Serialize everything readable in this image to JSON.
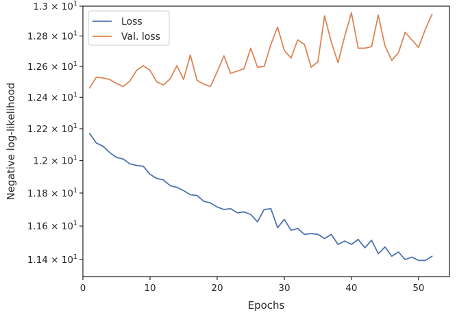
{
  "chart_data": {
    "type": "line",
    "xlabel": "Epochs",
    "ylabel": "Negative log-likelihood",
    "xlim": [
      0,
      54.6
    ],
    "ylim": [
      11.3,
      13.0
    ],
    "y_scale": "log",
    "grid": false,
    "legend_position": "top-left",
    "x_ticks": [
      0,
      10,
      20,
      30,
      40,
      50
    ],
    "x_tick_labels": [
      "0",
      "10",
      "20",
      "30",
      "40",
      "50"
    ],
    "y_ticks": [
      11.4,
      11.6,
      11.8,
      12.0,
      12.2,
      12.4,
      12.6,
      12.8,
      13.0
    ],
    "y_tick_labels": [
      {
        "mantissa": "1.14",
        "exp": "1"
      },
      {
        "mantissa": "1.16",
        "exp": "1"
      },
      {
        "mantissa": "1.18",
        "exp": "1"
      },
      {
        "mantissa": "1.2",
        "exp": "1"
      },
      {
        "mantissa": "1.22",
        "exp": "1"
      },
      {
        "mantissa": "1.24",
        "exp": "1"
      },
      {
        "mantissa": "1.26",
        "exp": "1"
      },
      {
        "mantissa": "1.28",
        "exp": "1"
      },
      {
        "mantissa": "1.3",
        "exp": "1"
      }
    ],
    "x": [
      1,
      2,
      3,
      4,
      5,
      6,
      7,
      8,
      9,
      10,
      11,
      12,
      13,
      14,
      15,
      16,
      17,
      18,
      19,
      20,
      21,
      22,
      23,
      24,
      25,
      26,
      27,
      28,
      29,
      30,
      31,
      32,
      33,
      34,
      35,
      36,
      37,
      38,
      39,
      40,
      41,
      42,
      43,
      44,
      45,
      46,
      47,
      48,
      49,
      50,
      51,
      52
    ],
    "series": [
      {
        "name": "Loss",
        "color": "#4c72b0",
        "values": [
          12.17,
          12.11,
          12.09,
          12.05,
          12.02,
          12.01,
          11.98,
          11.97,
          11.965,
          11.915,
          11.89,
          11.88,
          11.845,
          11.835,
          11.815,
          11.79,
          11.785,
          11.75,
          11.74,
          11.715,
          11.7,
          11.705,
          11.68,
          11.685,
          11.67,
          11.625,
          11.7,
          11.705,
          11.59,
          11.64,
          11.575,
          11.585,
          11.55,
          11.555,
          11.55,
          11.525,
          11.55,
          11.49,
          11.51,
          11.49,
          11.52,
          11.47,
          11.515,
          11.435,
          11.475,
          11.42,
          11.445,
          11.4,
          11.415,
          11.395,
          11.395,
          11.42
        ]
      },
      {
        "name": "Val. loss",
        "color": "#dd8452",
        "values": [
          12.46,
          12.53,
          12.525,
          12.515,
          12.49,
          12.47,
          12.505,
          12.575,
          12.605,
          12.575,
          12.5,
          12.48,
          12.52,
          12.605,
          12.515,
          12.675,
          12.51,
          12.485,
          12.47,
          12.565,
          12.67,
          12.555,
          12.57,
          12.585,
          12.72,
          12.595,
          12.6,
          12.745,
          12.86,
          12.705,
          12.655,
          12.775,
          12.745,
          12.595,
          12.63,
          12.935,
          12.76,
          12.625,
          12.8,
          12.955,
          12.72,
          12.72,
          12.73,
          12.94,
          12.735,
          12.64,
          12.69,
          12.825,
          12.775,
          12.725,
          12.845,
          12.945
        ]
      }
    ]
  }
}
